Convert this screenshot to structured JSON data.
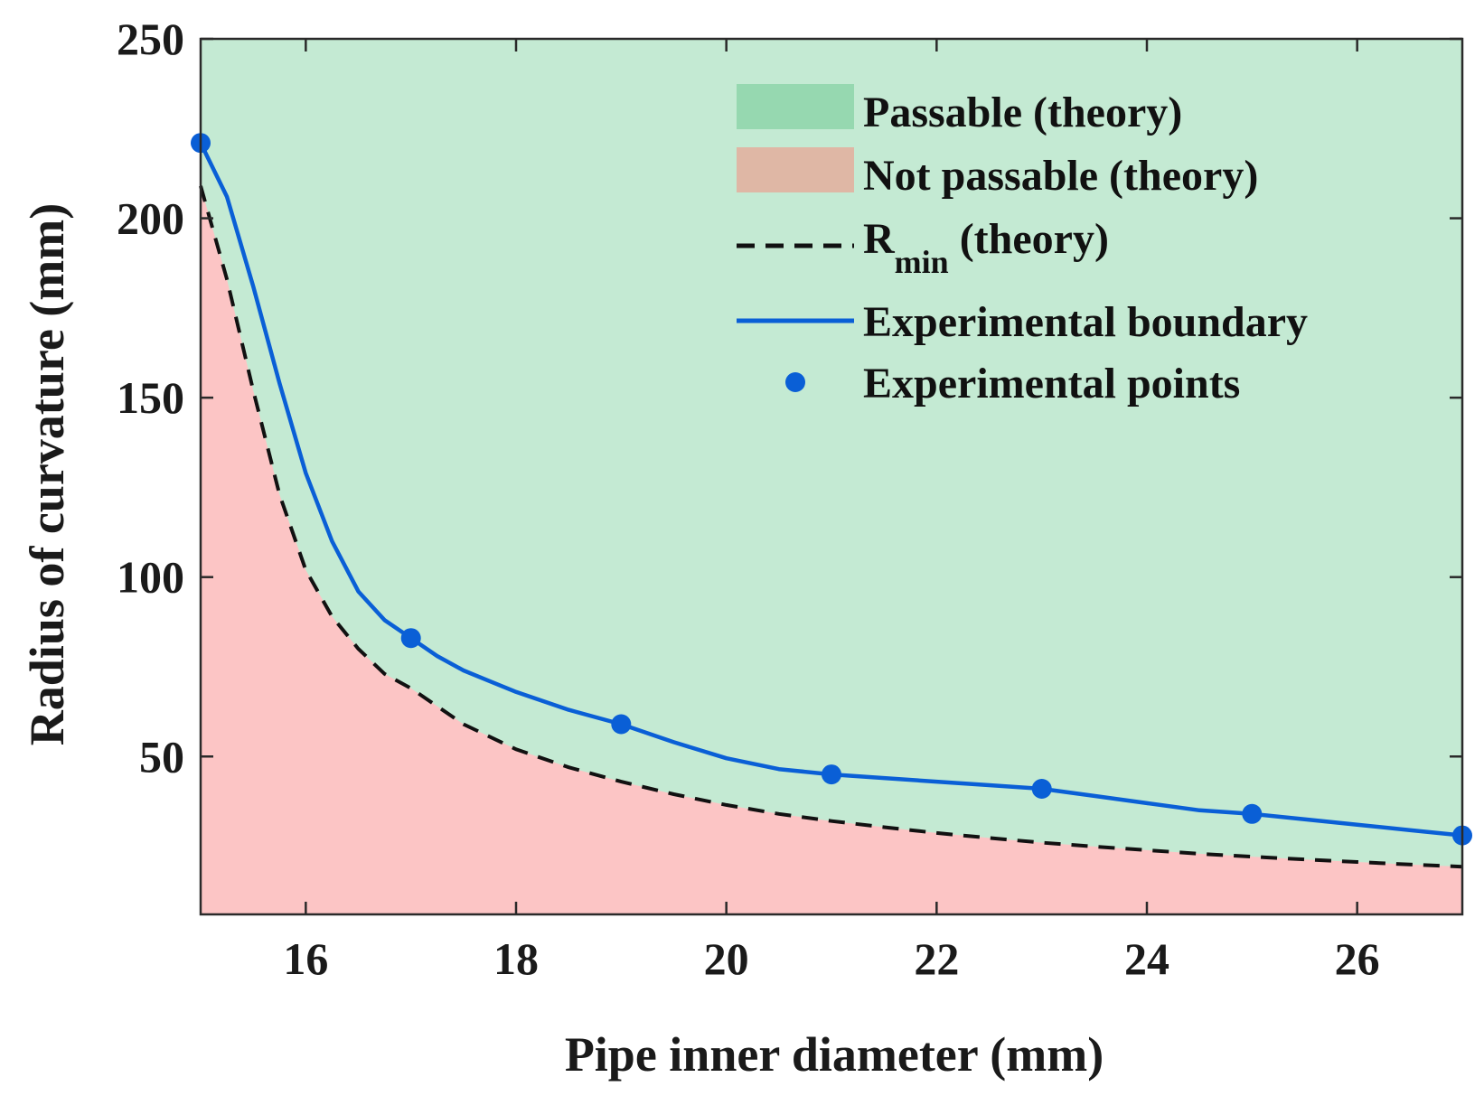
{
  "chart_data": {
    "type": "area",
    "xlabel": "Pipe inner diameter (mm)",
    "ylabel": "Radius of curvature (mm)",
    "xlim": [
      15,
      27
    ],
    "ylim": [
      6,
      250
    ],
    "xticks": [
      16,
      18,
      20,
      22,
      24,
      26
    ],
    "yticks": [
      50,
      100,
      150,
      200,
      250
    ],
    "grid": false,
    "legend_position": "top-right",
    "colors": {
      "passable_fill": "#c4ead3",
      "not_passable_fill": "#fcc5c5",
      "passable_legend": "#96d8b0",
      "not_passable_legend": "#dfb7a5",
      "rmin_line": "#111111",
      "experimental": "#0a5fd6",
      "axis": "#2a2a2a"
    },
    "legend": {
      "passable": "Passable (theory)",
      "not_passable": "Not passable (theory)",
      "rmin_main": "R",
      "rmin_sub": "min",
      "rmin_suffix": " (theory)",
      "boundary": "Experimental boundary",
      "points": "Experimental points"
    },
    "series": [
      {
        "name": "R_min (theory)",
        "style": "dashed",
        "x": [
          15,
          15.25,
          15.5,
          15.75,
          16,
          16.25,
          16.5,
          16.75,
          17,
          17.5,
          18,
          18.5,
          19,
          19.5,
          20,
          20.5,
          21,
          21.5,
          22,
          22.5,
          23,
          23.5,
          24,
          24.5,
          25,
          25.5,
          26,
          26.5,
          27
        ],
        "y": [
          209,
          183,
          152,
          123,
          102,
          89,
          80,
          73,
          69,
          59,
          52,
          47,
          43,
          39.5,
          36.5,
          34,
          32,
          30.3,
          28.7,
          27.3,
          26,
          24.9,
          23.9,
          22.9,
          22.1,
          21.3,
          20.6,
          19.9,
          19.3
        ]
      },
      {
        "name": "Experimental boundary",
        "style": "solid",
        "x": [
          15,
          15.25,
          15.5,
          15.75,
          16,
          16.25,
          16.5,
          16.75,
          17,
          17.25,
          17.5,
          17.75,
          18,
          18.5,
          19,
          19.5,
          20,
          20.5,
          21,
          21.5,
          22,
          22.5,
          23,
          23.5,
          24,
          24.5,
          25,
          25.5,
          26,
          26.5,
          27
        ],
        "y": [
          221,
          206,
          181,
          154,
          129,
          110,
          96,
          88,
          83,
          78,
          74,
          71,
          68,
          63,
          59,
          54,
          49.5,
          46.5,
          45,
          44,
          43,
          42,
          41,
          39,
          37,
          35,
          34,
          32.5,
          31,
          29.5,
          28
        ]
      },
      {
        "name": "Experimental points",
        "style": "markers",
        "x": [
          15,
          17,
          19,
          21,
          23,
          25,
          27
        ],
        "y": [
          221,
          83,
          59,
          45,
          41,
          34,
          28
        ]
      }
    ]
  }
}
